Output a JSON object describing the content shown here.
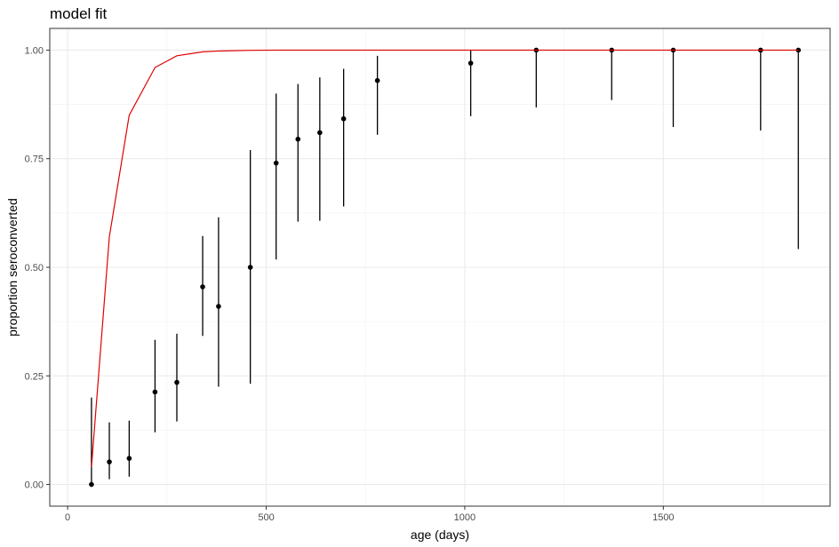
{
  "chart_data": {
    "type": "scatter",
    "title": "model fit",
    "xlabel": "age (days)",
    "ylabel": "proportion seroconverted",
    "xlim": [
      -45,
      1920
    ],
    "ylim": [
      -0.05,
      1.05
    ],
    "x_ticks": [
      0,
      500,
      1000,
      1500
    ],
    "x_tick_labels": [
      "0",
      "500",
      "1000",
      "1500"
    ],
    "y_ticks": [
      0.0,
      0.25,
      0.5,
      0.75,
      1.0
    ],
    "y_tick_labels": [
      "0.00",
      "0.25",
      "0.50",
      "0.75",
      "1.00"
    ],
    "grid": true,
    "legend": "none",
    "colors": {
      "points": "#000000",
      "errorbars": "#000000",
      "fit_line": "#e00000",
      "panel_border": "#333333",
      "grid_major": "#ebebeb",
      "grid_minor": "#f3f3f3"
    },
    "points": [
      {
        "x": 60,
        "y": 0.0,
        "lower": 0.0,
        "upper": 0.2
      },
      {
        "x": 105,
        "y": 0.052,
        "lower": 0.012,
        "upper": 0.143
      },
      {
        "x": 155,
        "y": 0.06,
        "lower": 0.018,
        "upper": 0.147
      },
      {
        "x": 220,
        "y": 0.213,
        "lower": 0.12,
        "upper": 0.333
      },
      {
        "x": 275,
        "y": 0.235,
        "lower": 0.145,
        "upper": 0.347
      },
      {
        "x": 340,
        "y": 0.455,
        "lower": 0.342,
        "upper": 0.572
      },
      {
        "x": 380,
        "y": 0.41,
        "lower": 0.225,
        "upper": 0.615
      },
      {
        "x": 460,
        "y": 0.5,
        "lower": 0.232,
        "upper": 0.77
      },
      {
        "x": 525,
        "y": 0.74,
        "lower": 0.518,
        "upper": 0.9
      },
      {
        "x": 580,
        "y": 0.795,
        "lower": 0.605,
        "upper": 0.922
      },
      {
        "x": 635,
        "y": 0.81,
        "lower": 0.607,
        "upper": 0.937
      },
      {
        "x": 695,
        "y": 0.842,
        "lower": 0.64,
        "upper": 0.957
      },
      {
        "x": 780,
        "y": 0.93,
        "lower": 0.805,
        "upper": 0.987
      },
      {
        "x": 1015,
        "y": 0.97,
        "lower": 0.848,
        "upper": 1.0
      },
      {
        "x": 1180,
        "y": 1.0,
        "lower": 0.868,
        "upper": 1.0
      },
      {
        "x": 1370,
        "y": 1.0,
        "lower": 0.885,
        "upper": 1.0
      },
      {
        "x": 1525,
        "y": 1.0,
        "lower": 0.823,
        "upper": 1.0
      },
      {
        "x": 1745,
        "y": 1.0,
        "lower": 0.815,
        "upper": 1.0
      },
      {
        "x": 1840,
        "y": 1.0,
        "lower": 0.542,
        "upper": 1.0
      }
    ],
    "fit_line": {
      "x": [
        60,
        105,
        155,
        220,
        275,
        340,
        380,
        460,
        525,
        580,
        635,
        695,
        780,
        1015,
        1180,
        1370,
        1525,
        1745,
        1840
      ],
      "y": [
        0.04,
        0.57,
        0.85,
        0.96,
        0.987,
        0.996,
        0.998,
        0.9995,
        1.0,
        1.0,
        1.0,
        1.0,
        1.0,
        1.0,
        1.0,
        1.0,
        1.0,
        1.0,
        1.0
      ]
    }
  }
}
